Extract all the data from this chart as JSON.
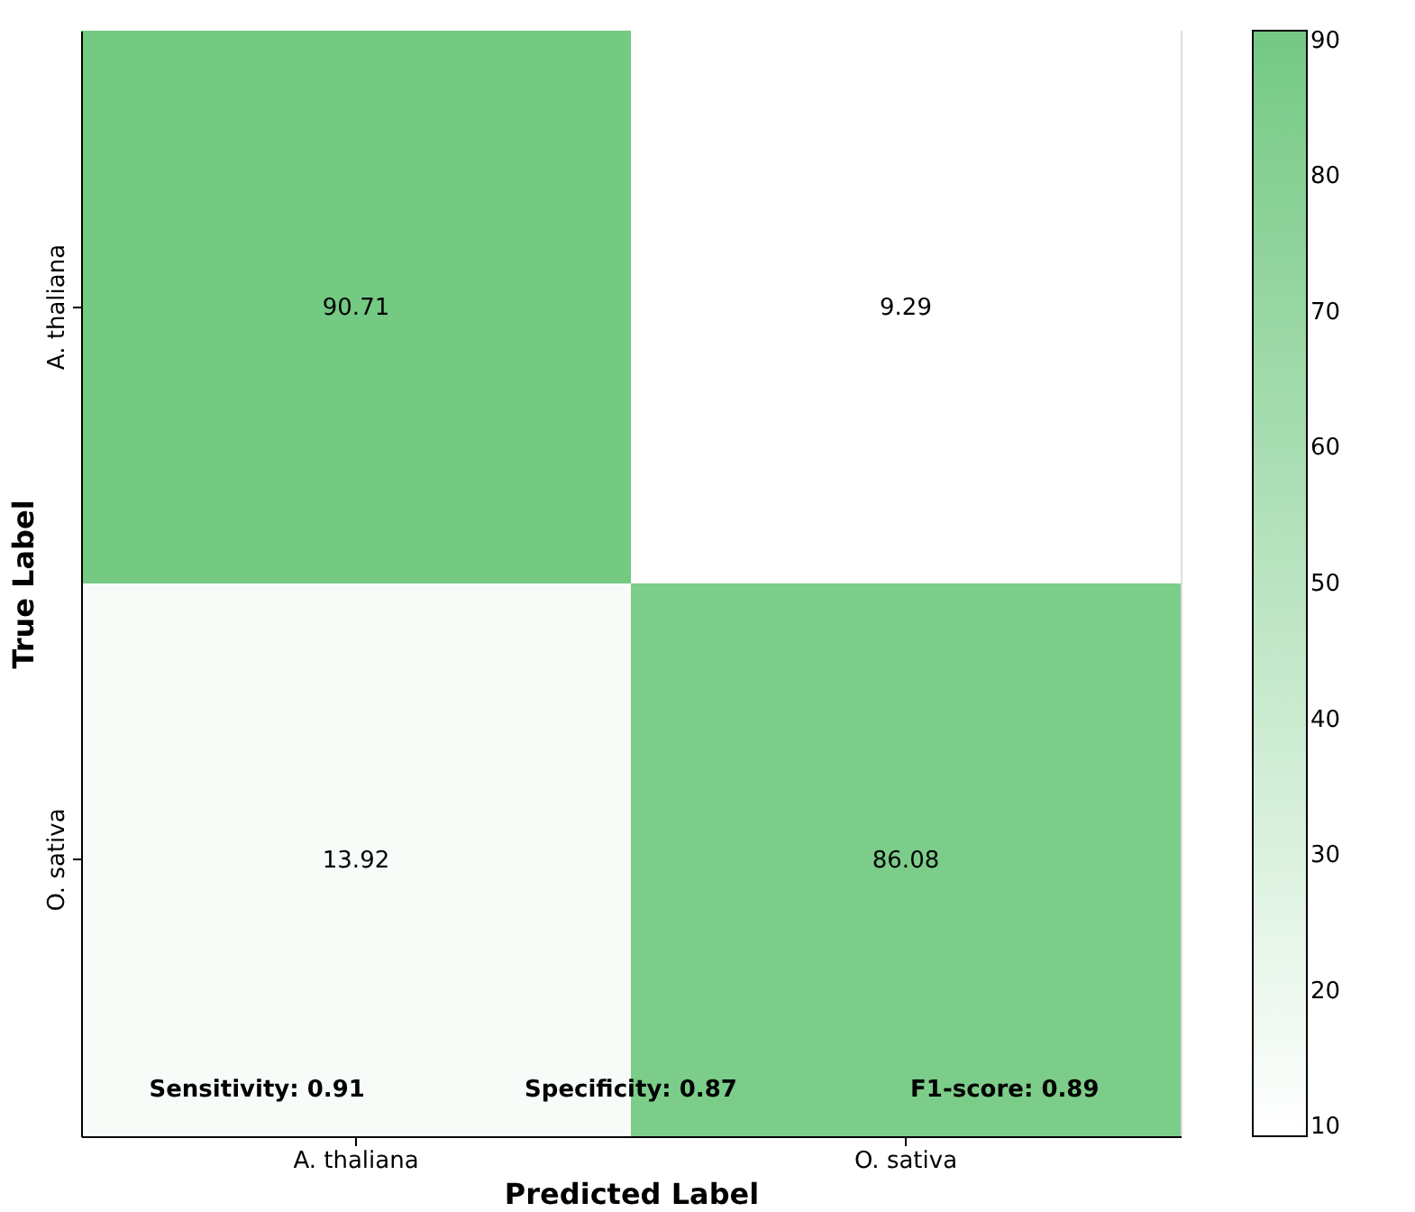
{
  "chart_data": {
    "type": "heatmap",
    "xlabel": "Predicted Label",
    "ylabel": "True Label",
    "categories": [
      "A. thaliana",
      "O. sativa"
    ],
    "y_categories": [
      "A. thaliana",
      "O. sativa"
    ],
    "cells": [
      [
        90.71,
        9.29
      ],
      [
        13.92,
        86.08
      ]
    ],
    "data_labels": true,
    "clim": [
      9.29,
      90.71
    ],
    "cticks": [
      10,
      20,
      30,
      40,
      50,
      60,
      70,
      80,
      90
    ],
    "colors": [
      "#ffffff",
      "#74c983"
    ],
    "annotations": [
      "Sensitivity: 0.91",
      "Specificity: 0.87",
      "F1-score: 0.89"
    ]
  }
}
